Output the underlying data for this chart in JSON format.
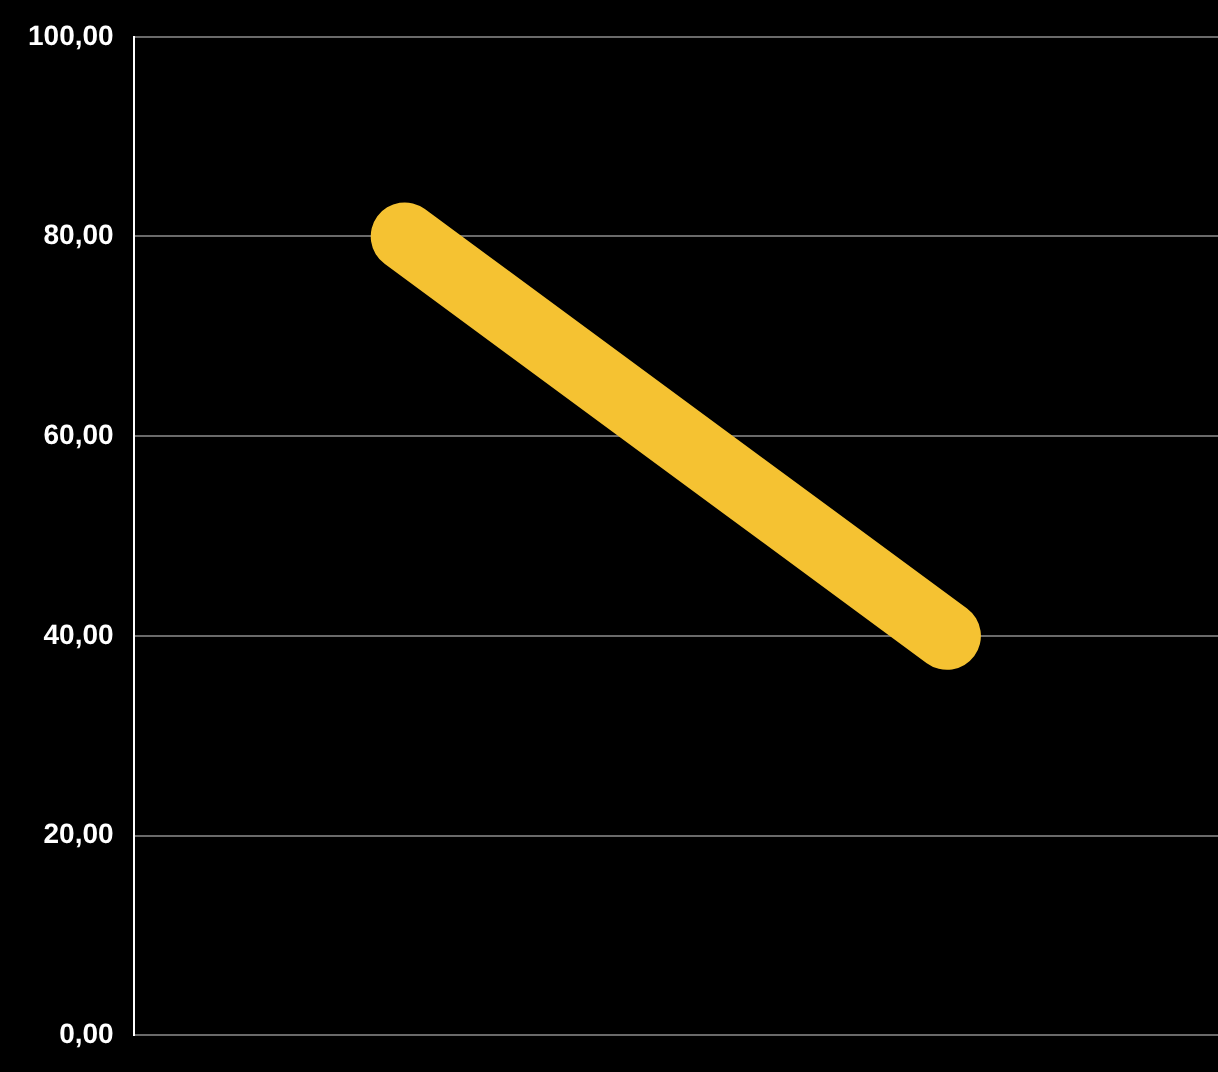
{
  "chart_data": {
    "type": "line",
    "categories": [
      null,
      null
    ],
    "series": [
      {
        "color": "#f5c232",
        "values": [
          80,
          40
        ]
      }
    ],
    "ylim": [
      0,
      100
    ],
    "yticks": [
      {
        "value": 0,
        "label": "0,00"
      },
      {
        "value": 20,
        "label": "20,00"
      },
      {
        "value": 40,
        "label": "40,00"
      },
      {
        "value": 60,
        "label": "60,00"
      },
      {
        "value": 80,
        "label": "80,00"
      },
      {
        "value": 100,
        "label": "100,00"
      }
    ],
    "grid": "y",
    "legend": false,
    "marker": "none",
    "line_style": "solid",
    "tick_labels": "y"
  }
}
